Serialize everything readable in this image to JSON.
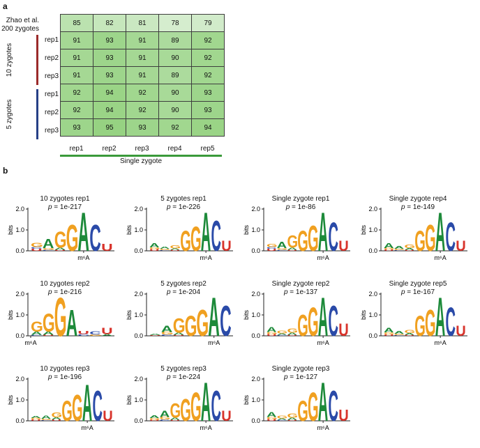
{
  "panel_a": {
    "label": "a",
    "header_row_label_line1": "Zhao et al.",
    "header_row_label_line2": "200 zygotes",
    "groups": [
      {
        "name": "10 zygotes",
        "color": "#9b2a2a"
      },
      {
        "name": "5 zygotes",
        "color": "#263f86"
      }
    ],
    "row_labels": [
      "rep1",
      "rep2",
      "rep3",
      "rep1",
      "rep2",
      "rep3"
    ],
    "column_labels": [
      "rep1",
      "rep2",
      "rep3",
      "rep4",
      "rep5"
    ],
    "x_group_label": "Single zygote",
    "x_group_color": "#3a9a3a",
    "header_values": [
      85,
      82,
      81,
      78,
      79
    ],
    "values": [
      [
        91,
        93,
        91,
        89,
        92
      ],
      [
        91,
        93,
        91,
        90,
        92
      ],
      [
        91,
        93,
        91,
        89,
        92
      ],
      [
        92,
        94,
        92,
        90,
        93
      ],
      [
        92,
        94,
        92,
        90,
        93
      ],
      [
        93,
        95,
        93,
        92,
        94
      ]
    ]
  },
  "panel_b": {
    "label": "b",
    "y_axis_label": "bits",
    "y_ticks": [
      "2.0",
      "1.0",
      "0.0"
    ],
    "center_label": "m⁶A",
    "p_prefix": "p",
    "colors": {
      "A": "#1d8a3a",
      "C": "#2a4aa8",
      "G": "#f0a020",
      "U": "#d8342c"
    }
  },
  "chart_data": [
    {
      "type": "logo",
      "title": "10 zygotes rep1",
      "pvalue": "= 1e-217",
      "positions": [
        [
          [
            "U",
            0.1
          ],
          [
            "C",
            0.08
          ],
          [
            "G",
            0.2
          ]
        ],
        [
          [
            "C",
            0.05
          ],
          [
            "G",
            0.08
          ],
          [
            "A",
            0.45
          ]
        ],
        [
          [
            "U",
            0.05
          ],
          [
            "A",
            0.1
          ],
          [
            "G",
            0.8
          ]
        ],
        [
          [
            "G",
            1.3
          ]
        ],
        [
          [
            "A",
            1.9
          ]
        ],
        [
          [
            "C",
            1.3
          ]
        ],
        [
          [
            "U",
            0.35
          ]
        ]
      ]
    },
    {
      "type": "logo",
      "title": "5 zygotes rep1",
      "pvalue": "= 1e-226",
      "positions": [
        [
          [
            "U",
            0.08
          ],
          [
            "G",
            0.08
          ],
          [
            "A",
            0.2
          ]
        ],
        [
          [
            "C",
            0.04
          ],
          [
            "G",
            0.06
          ],
          [
            "A",
            0.1
          ]
        ],
        [
          [
            "U",
            0.05
          ],
          [
            "A",
            0.06
          ],
          [
            "G",
            0.15
          ]
        ],
        [
          [
            "G",
            1.0
          ]
        ],
        [
          [
            "G",
            1.2
          ]
        ],
        [
          [
            "A",
            1.9
          ]
        ],
        [
          [
            "C",
            1.5
          ]
        ],
        [
          [
            "U",
            0.5
          ]
        ]
      ]
    },
    {
      "type": "logo",
      "title": "Single zygote rep1",
      "pvalue": "= 1e-86",
      "positions": [
        [
          [
            "U",
            0.1
          ],
          [
            "C",
            0.08
          ],
          [
            "G",
            0.15
          ]
        ],
        [
          [
            "C",
            0.05
          ],
          [
            "G",
            0.08
          ],
          [
            "A",
            0.3
          ]
        ],
        [
          [
            "U",
            0.05
          ],
          [
            "A",
            0.1
          ],
          [
            "G",
            0.6
          ]
        ],
        [
          [
            "G",
            1.0
          ]
        ],
        [
          [
            "G",
            1.25
          ]
        ],
        [
          [
            "A",
            1.9
          ]
        ],
        [
          [
            "C",
            1.4
          ]
        ],
        [
          [
            "U",
            0.5
          ]
        ]
      ]
    },
    {
      "type": "logo",
      "title": "Single zygote rep4",
      "pvalue": "= 1e-149",
      "positions": [
        [
          [
            "U",
            0.06
          ],
          [
            "G",
            0.08
          ],
          [
            "A",
            0.25
          ]
        ],
        [
          [
            "C",
            0.04
          ],
          [
            "G",
            0.06
          ],
          [
            "A",
            0.12
          ]
        ],
        [
          [
            "U",
            0.05
          ],
          [
            "A",
            0.08
          ],
          [
            "G",
            0.18
          ]
        ],
        [
          [
            "G",
            1.0
          ]
        ],
        [
          [
            "G",
            1.3
          ]
        ],
        [
          [
            "A",
            1.9
          ]
        ],
        [
          [
            "C",
            1.4
          ]
        ],
        [
          [
            "U",
            0.5
          ]
        ]
      ]
    },
    {
      "type": "logo",
      "title": "10 zygotes rep2",
      "pvalue": "= 1e-216",
      "positions": [
        [
          [
            "C",
            0.05
          ],
          [
            "A",
            0.15
          ],
          [
            "G",
            0.5
          ]
        ],
        [
          [
            "U",
            0.05
          ],
          [
            "A",
            0.15
          ],
          [
            "G",
            0.9
          ]
        ],
        [
          [
            "G",
            1.9
          ]
        ],
        [
          [
            "A",
            1.3
          ]
        ],
        [
          [
            "C",
            0.08
          ],
          [
            "U",
            0.15
          ]
        ],
        [
          [
            "G",
            0.06
          ],
          [
            "C",
            0.15
          ]
        ],
        [
          [
            "A",
            0.08
          ],
          [
            "U",
            0.3
          ]
        ]
      ]
    },
    {
      "type": "logo",
      "title": "5 zygotes rep2",
      "pvalue": "= 1e-204",
      "positions": [
        [
          [
            "U",
            0.04
          ],
          [
            "A",
            0.06
          ]
        ],
        [
          [
            "C",
            0.06
          ],
          [
            "G",
            0.12
          ],
          [
            "A",
            0.3
          ]
        ],
        [
          [
            "U",
            0.05
          ],
          [
            "A",
            0.1
          ],
          [
            "G",
            0.7
          ]
        ],
        [
          [
            "G",
            1.0
          ]
        ],
        [
          [
            "G",
            1.3
          ]
        ],
        [
          [
            "A",
            1.9
          ]
        ],
        [
          [
            "C",
            1.5
          ]
        ]
      ]
    },
    {
      "type": "logo",
      "title": "Single zygote rep2",
      "pvalue": "= 1e-137",
      "positions": [
        [
          [
            "U",
            0.08
          ],
          [
            "G",
            0.1
          ],
          [
            "A",
            0.25
          ]
        ],
        [
          [
            "C",
            0.05
          ],
          [
            "A",
            0.06
          ],
          [
            "G",
            0.12
          ]
        ],
        [
          [
            "U",
            0.05
          ],
          [
            "A",
            0.1
          ],
          [
            "G",
            0.2
          ]
        ],
        [
          [
            "G",
            1.05
          ]
        ],
        [
          [
            "G",
            1.4
          ]
        ],
        [
          [
            "A",
            1.9
          ]
        ],
        [
          [
            "C",
            1.5
          ]
        ],
        [
          [
            "U",
            0.6
          ]
        ]
      ]
    },
    {
      "type": "logo",
      "title": "Single zygote rep5",
      "pvalue": "= 1e-167",
      "positions": [
        [
          [
            "U",
            0.06
          ],
          [
            "G",
            0.1
          ],
          [
            "A",
            0.22
          ]
        ],
        [
          [
            "C",
            0.04
          ],
          [
            "G",
            0.06
          ],
          [
            "A",
            0.12
          ]
        ],
        [
          [
            "U",
            0.05
          ],
          [
            "A",
            0.08
          ],
          [
            "G",
            0.15
          ]
        ],
        [
          [
            "G",
            1.0
          ]
        ],
        [
          [
            "G",
            1.3
          ]
        ],
        [
          [
            "A",
            1.9
          ]
        ],
        [
          [
            "C",
            1.4
          ]
        ],
        [
          [
            "U",
            0.5
          ]
        ]
      ]
    },
    {
      "type": "logo",
      "title": "10 zygotes rep3",
      "pvalue": "= 1e-196",
      "positions": [
        [
          [
            "U",
            0.06
          ],
          [
            "G",
            0.08
          ],
          [
            "A",
            0.1
          ]
        ],
        [
          [
            "C",
            0.04
          ],
          [
            "G",
            0.06
          ],
          [
            "A",
            0.15
          ]
        ],
        [
          [
            "U",
            0.06
          ],
          [
            "A",
            0.1
          ],
          [
            "G",
            0.25
          ]
        ],
        [
          [
            "G",
            1.0
          ]
        ],
        [
          [
            "G",
            1.3
          ]
        ],
        [
          [
            "A",
            1.8
          ]
        ],
        [
          [
            "C",
            1.5
          ]
        ],
        [
          [
            "U",
            0.5
          ]
        ]
      ]
    },
    {
      "type": "logo",
      "title": "5 zygotes rep3",
      "pvalue": "= 1e-224",
      "positions": [
        [
          [
            "U",
            0.05
          ],
          [
            "G",
            0.08
          ],
          [
            "A",
            0.12
          ]
        ],
        [
          [
            "C",
            0.06
          ],
          [
            "G",
            0.12
          ],
          [
            "A",
            0.3
          ]
        ],
        [
          [
            "U",
            0.05
          ],
          [
            "A",
            0.1
          ],
          [
            "G",
            0.7
          ]
        ],
        [
          [
            "G",
            1.1
          ]
        ],
        [
          [
            "G",
            1.4
          ]
        ],
        [
          [
            "A",
            1.9
          ]
        ],
        [
          [
            "C",
            1.5
          ]
        ],
        [
          [
            "U",
            0.5
          ]
        ]
      ]
    },
    {
      "type": "logo",
      "title": "Single zygote rep3",
      "pvalue": "= 1e-127",
      "positions": [
        [
          [
            "U",
            0.08
          ],
          [
            "G",
            0.1
          ],
          [
            "A",
            0.25
          ]
        ],
        [
          [
            "C",
            0.05
          ],
          [
            "A",
            0.06
          ],
          [
            "G",
            0.12
          ]
        ],
        [
          [
            "U",
            0.05
          ],
          [
            "A",
            0.1
          ],
          [
            "G",
            0.2
          ]
        ],
        [
          [
            "G",
            1.0
          ]
        ],
        [
          [
            "G",
            1.4
          ]
        ],
        [
          [
            "A",
            1.9
          ]
        ],
        [
          [
            "C",
            1.5
          ]
        ],
        [
          [
            "U",
            0.55
          ]
        ]
      ]
    }
  ]
}
